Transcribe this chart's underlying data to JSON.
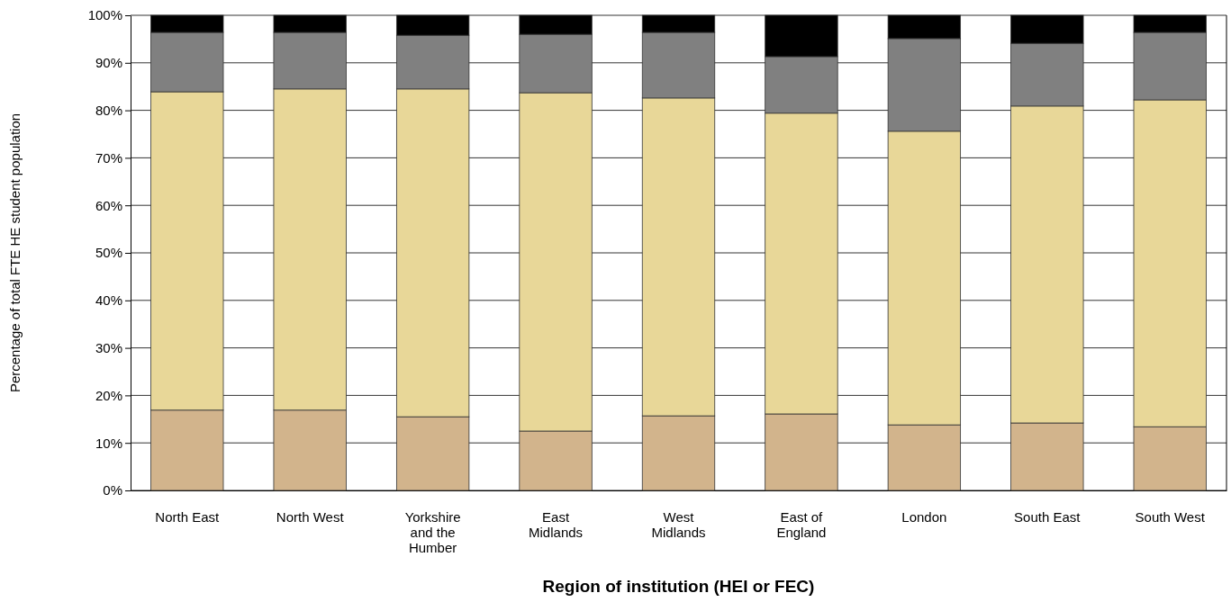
{
  "chart_data": {
    "type": "bar",
    "stacked": true,
    "xlabel": "Region of institution (HEI or FEC)",
    "ylabel": "Percentage of total FTE HE student population",
    "categories": [
      "North East",
      "North West",
      "Yorkshire and the Humber",
      "East Midlands",
      "West Midlands",
      "East of England",
      "London",
      "South East",
      "South West"
    ],
    "series": [
      {
        "color": "#d2b48c",
        "values": [
          16.9,
          16.9,
          15.5,
          12.5,
          15.7,
          16.1,
          13.8,
          14.2,
          13.4
        ]
      },
      {
        "color": "#e8d798",
        "values": [
          67.0,
          67.6,
          69.0,
          71.2,
          66.9,
          63.3,
          61.8,
          66.7,
          68.8
        ]
      },
      {
        "color": "#808080",
        "values": [
          12.5,
          11.9,
          11.3,
          12.3,
          13.8,
          11.9,
          19.5,
          13.2,
          14.2
        ]
      },
      {
        "color": "#000000",
        "values": [
          3.6,
          3.6,
          4.2,
          4.0,
          3.6,
          8.7,
          4.9,
          5.9,
          3.6
        ]
      }
    ],
    "ylim": [
      0,
      100
    ],
    "yticks": [
      {
        "value": 0,
        "label": "0%"
      },
      {
        "value": 10,
        "label": "10%"
      },
      {
        "value": 20,
        "label": "20%"
      },
      {
        "value": 30,
        "label": "30%"
      },
      {
        "value": 40,
        "label": "40%"
      },
      {
        "value": 50,
        "label": "50%"
      },
      {
        "value": 60,
        "label": "60%"
      },
      {
        "value": 70,
        "label": "70%"
      },
      {
        "value": 80,
        "label": "80%"
      },
      {
        "value": 90,
        "label": "90%"
      },
      {
        "value": 100,
        "label": "100%"
      }
    ],
    "grid": "y"
  }
}
